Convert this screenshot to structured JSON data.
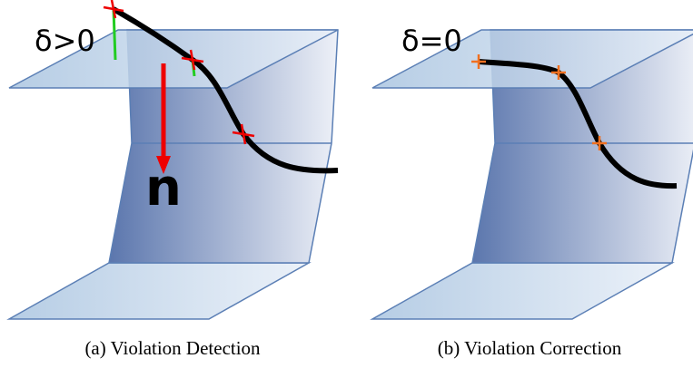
{
  "panels": [
    {
      "label": "δ>0",
      "normal": "n",
      "caption": "(a) Violation Detection"
    },
    {
      "label": "δ=0",
      "caption": "(b) Violation Correction"
    }
  ]
}
